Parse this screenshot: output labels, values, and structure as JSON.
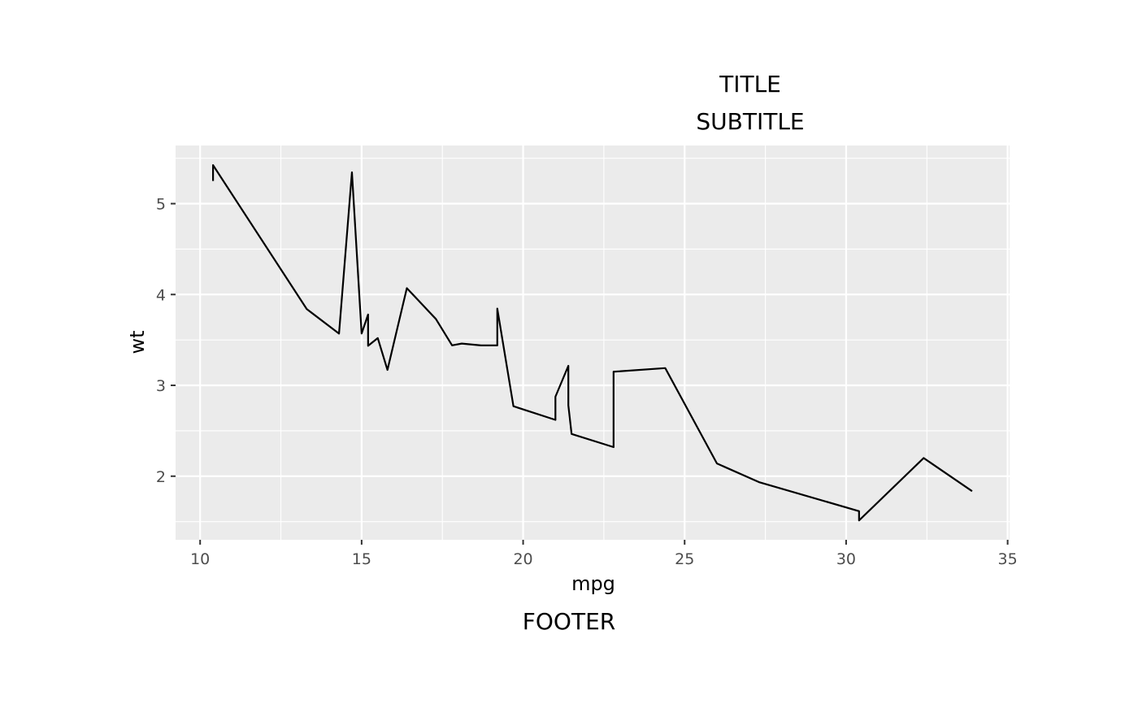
{
  "chart_data": {
    "type": "line",
    "title": "TITLE",
    "subtitle": "SUBTITLE",
    "caption": "FOOTER",
    "xlabel": "mpg",
    "ylabel": "wt",
    "xlim": [
      9.24,
      35.06
    ],
    "ylim": [
      1.3,
      5.64
    ],
    "x_ticks": [
      10,
      15,
      20,
      25,
      30,
      35
    ],
    "x_tick_labels": [
      "10",
      "15",
      "20",
      "25",
      "30",
      "35"
    ],
    "y_ticks": [
      2,
      3,
      4,
      5
    ],
    "y_tick_labels": [
      "2",
      "3",
      "4",
      "5"
    ],
    "grid": true,
    "panel_background": "#ebebeb",
    "line_color": "#000000",
    "series": [
      {
        "x": [
          10.4,
          10.4,
          13.3,
          14.3,
          14.7,
          15.0,
          15.2,
          15.2,
          15.5,
          15.8,
          16.4,
          17.3,
          17.8,
          18.1,
          18.7,
          19.2,
          19.2,
          19.7,
          21.0,
          21.0,
          21.4,
          21.4,
          21.5,
          22.8,
          22.8,
          24.4,
          26.0,
          27.3,
          30.4,
          30.4,
          32.4,
          33.9
        ],
        "y": [
          5.25,
          5.424,
          3.84,
          3.57,
          5.345,
          3.57,
          3.78,
          3.435,
          3.52,
          3.17,
          4.07,
          3.73,
          3.44,
          3.46,
          3.44,
          3.44,
          3.845,
          2.77,
          2.62,
          2.875,
          3.215,
          2.78,
          2.465,
          2.32,
          3.15,
          3.19,
          2.14,
          1.935,
          1.615,
          1.513,
          2.2,
          1.835
        ]
      }
    ]
  }
}
